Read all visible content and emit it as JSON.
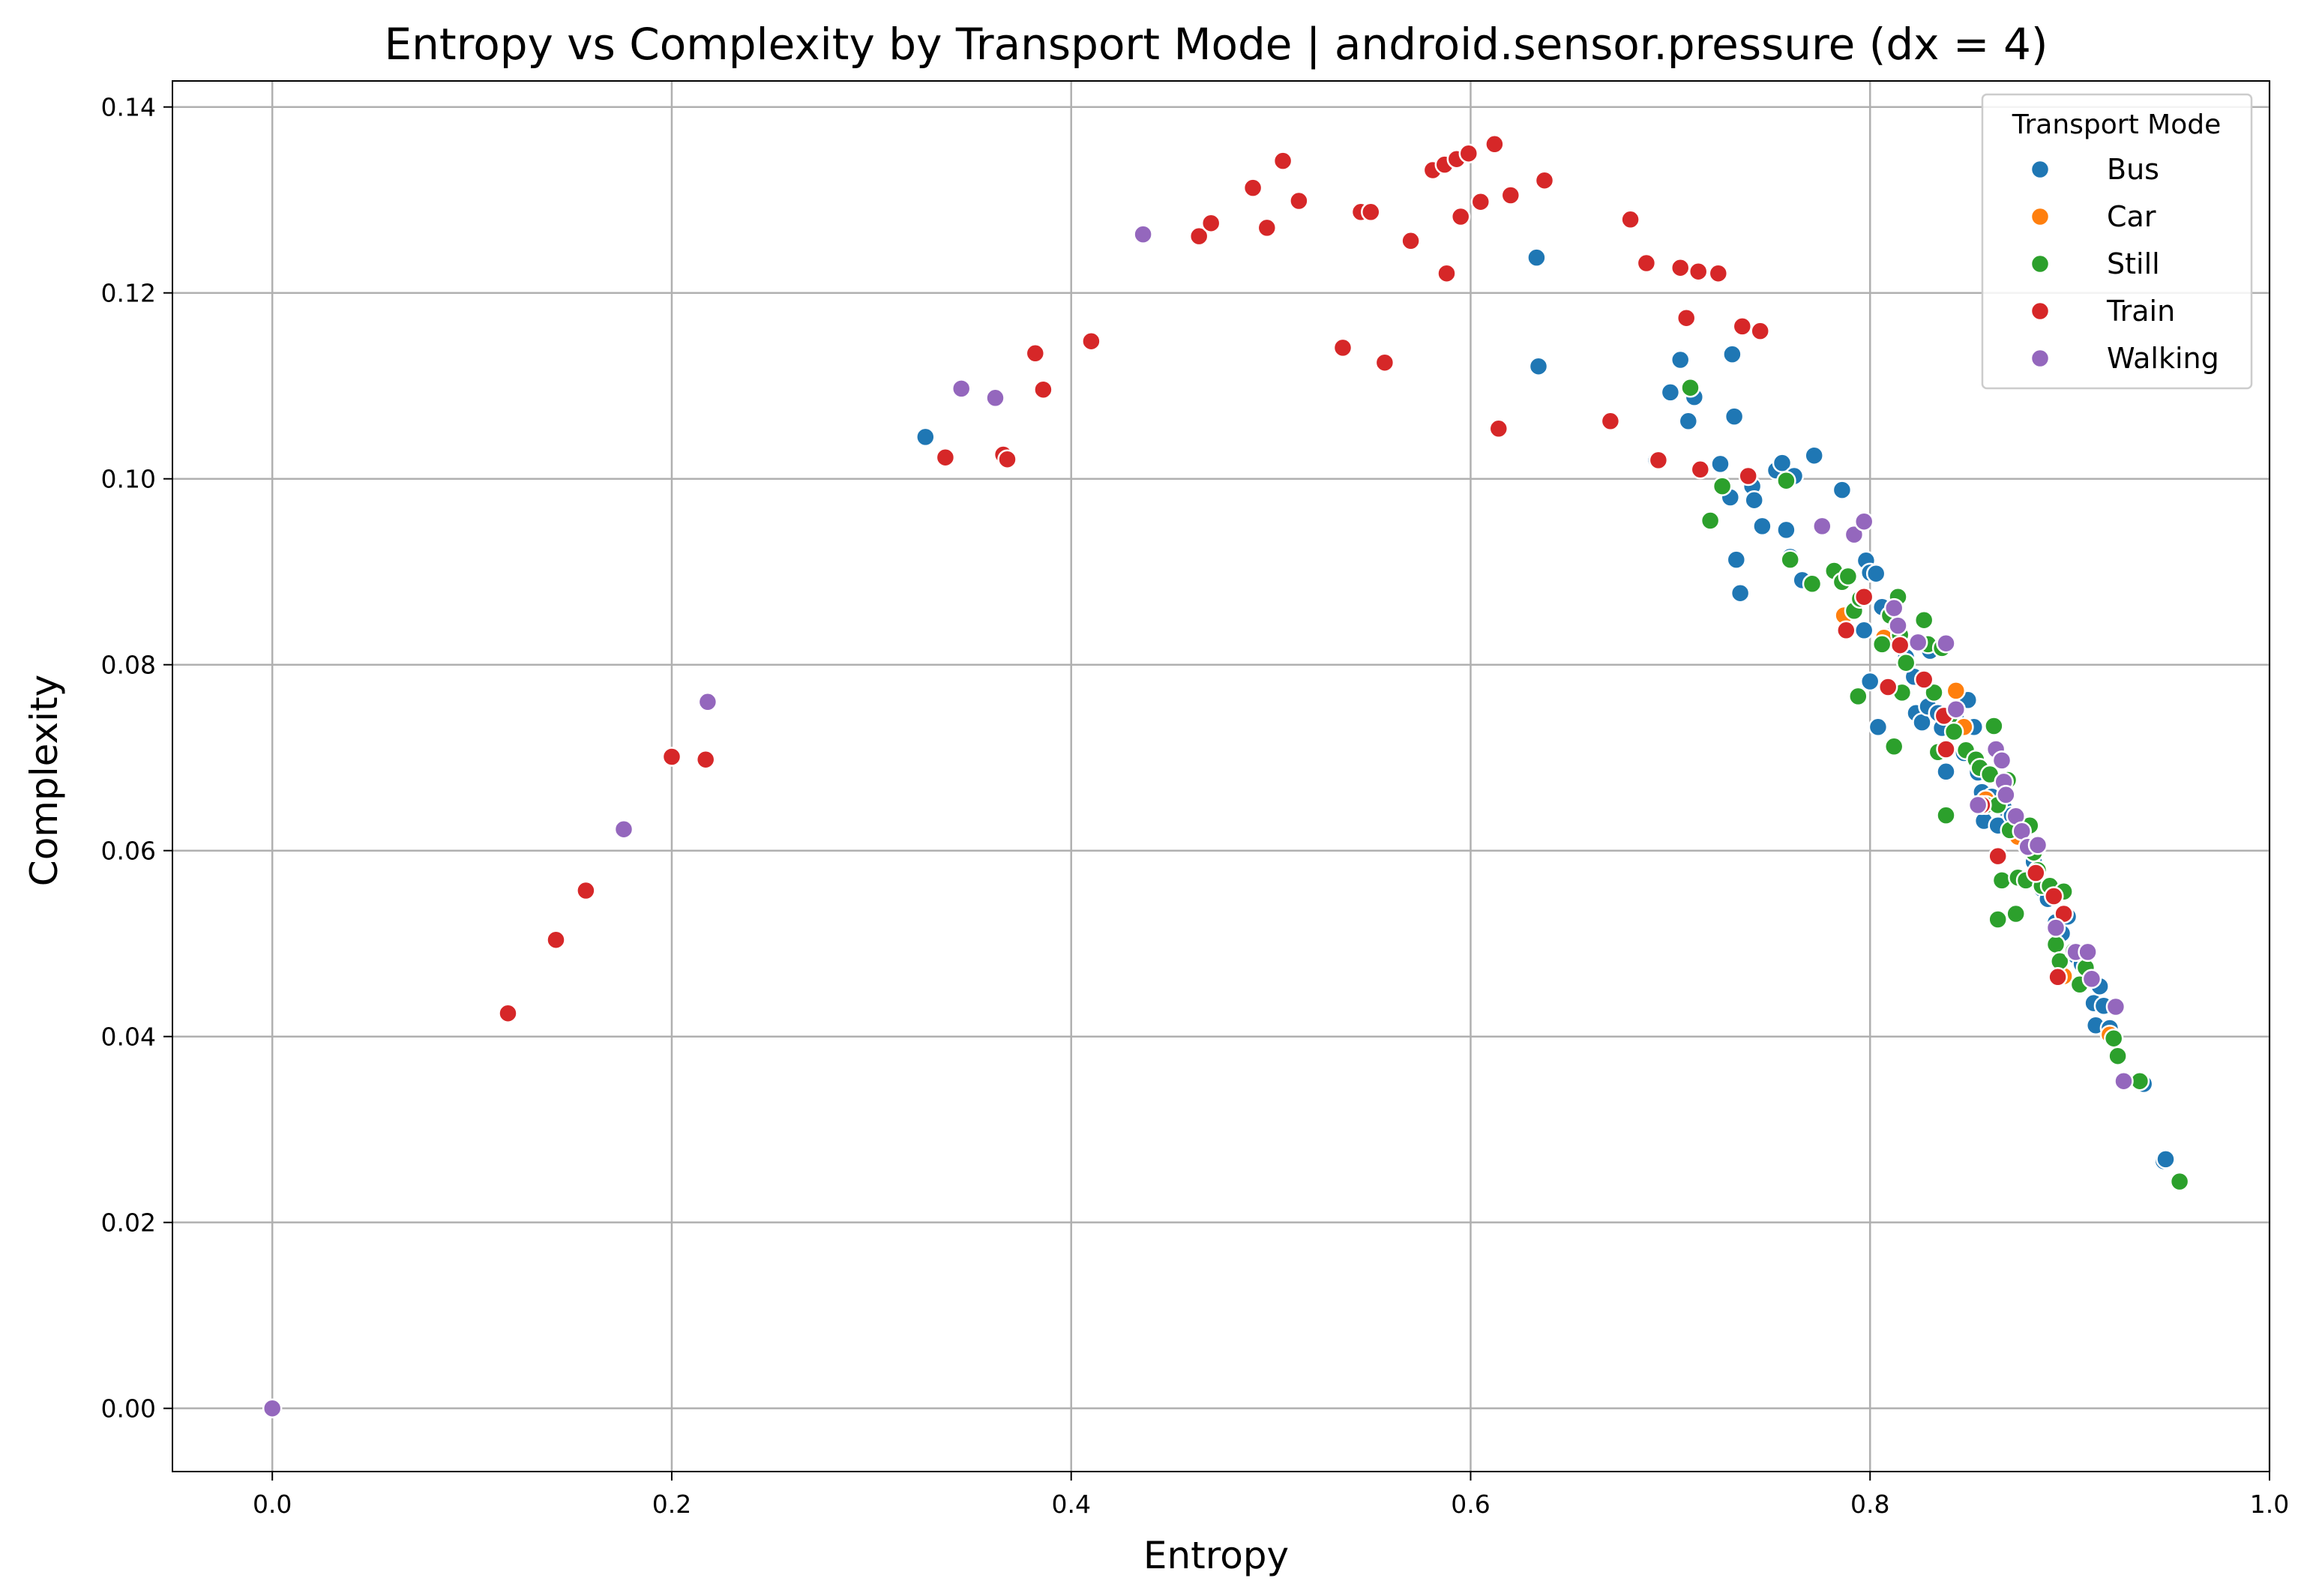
{
  "chart_data": {
    "type": "scatter",
    "title": "Entropy vs Complexity by Transport Mode | android.sensor.pressure (dx = 4)",
    "xlabel": "Entropy",
    "ylabel": "Complexity",
    "xlim": [
      -0.05,
      1.0
    ],
    "ylim": [
      -0.0068,
      0.1428
    ],
    "xticks": [
      0.0,
      0.2,
      0.4,
      0.6,
      0.8,
      1.0
    ],
    "xtick_labels": [
      "0.0",
      "0.2",
      "0.4",
      "0.6",
      "0.8",
      "1.0"
    ],
    "yticks": [
      0.0,
      0.02,
      0.04,
      0.06,
      0.08,
      0.1,
      0.12,
      0.14
    ],
    "ytick_labels": [
      "0.00",
      "0.02",
      "0.04",
      "0.06",
      "0.08",
      "0.10",
      "0.12",
      "0.14"
    ],
    "grid": true,
    "legend": {
      "title": "Transport Mode",
      "placement": "top-right"
    },
    "series": [
      {
        "name": "Bus",
        "color": "#1f77b4",
        "points": [
          [
            0.327,
            0.1045
          ],
          [
            0.633,
            0.1238
          ],
          [
            0.634,
            0.1121
          ],
          [
            0.693,
            0.102
          ],
          [
            0.7,
            0.1093
          ],
          [
            0.705,
            0.1128
          ],
          [
            0.709,
            0.1062
          ],
          [
            0.712,
            0.1088
          ],
          [
            0.725,
            0.1016
          ],
          [
            0.731,
            0.1134
          ],
          [
            0.732,
            0.1067
          ],
          [
            0.73,
            0.098
          ],
          [
            0.733,
            0.0913
          ],
          [
            0.735,
            0.0877
          ],
          [
            0.741,
            0.0992
          ],
          [
            0.742,
            0.0977
          ],
          [
            0.746,
            0.0949
          ],
          [
            0.753,
            0.1009
          ],
          [
            0.756,
            0.1017
          ],
          [
            0.758,
            0.0945
          ],
          [
            0.76,
            0.0916
          ],
          [
            0.762,
            0.1003
          ],
          [
            0.766,
            0.0891
          ],
          [
            0.772,
            0.1025
          ],
          [
            0.786,
            0.0988
          ],
          [
            0.797,
            0.0837
          ],
          [
            0.798,
            0.0912
          ],
          [
            0.8,
            0.0899
          ],
          [
            0.8,
            0.0782
          ],
          [
            0.803,
            0.0898
          ],
          [
            0.804,
            0.0733
          ],
          [
            0.806,
            0.0862
          ],
          [
            0.812,
            0.0833
          ],
          [
            0.815,
            0.082
          ],
          [
            0.818,
            0.0808
          ],
          [
            0.822,
            0.0787
          ],
          [
            0.823,
            0.0748
          ],
          [
            0.826,
            0.0738
          ],
          [
            0.829,
            0.0755
          ],
          [
            0.83,
            0.0815
          ],
          [
            0.834,
            0.0748
          ],
          [
            0.836,
            0.0732
          ],
          [
            0.838,
            0.0685
          ],
          [
            0.843,
            0.0742
          ],
          [
            0.847,
            0.0705
          ],
          [
            0.849,
            0.0762
          ],
          [
            0.852,
            0.0733
          ],
          [
            0.854,
            0.0684
          ],
          [
            0.856,
            0.0663
          ],
          [
            0.857,
            0.0632
          ],
          [
            0.861,
            0.0658
          ],
          [
            0.864,
            0.0627
          ],
          [
            0.867,
            0.0646
          ],
          [
            0.871,
            0.0638
          ],
          [
            0.875,
            0.0615
          ],
          [
            0.878,
            0.0607
          ],
          [
            0.882,
            0.0588
          ],
          [
            0.886,
            0.0559
          ],
          [
            0.889,
            0.0548
          ],
          [
            0.893,
            0.0523
          ],
          [
            0.896,
            0.0511
          ],
          [
            0.899,
            0.0529
          ],
          [
            0.903,
            0.0487
          ],
          [
            0.906,
            0.0478
          ],
          [
            0.91,
            0.0462
          ],
          [
            0.912,
            0.0436
          ],
          [
            0.913,
            0.0412
          ],
          [
            0.915,
            0.0454
          ],
          [
            0.917,
            0.0433
          ],
          [
            0.92,
            0.0409
          ],
          [
            0.937,
            0.0349
          ],
          [
            0.947,
            0.0266
          ],
          [
            0.948,
            0.0268
          ]
        ]
      },
      {
        "name": "Car",
        "color": "#ff7f0e",
        "points": [
          [
            0.787,
            0.0853
          ],
          [
            0.807,
            0.0829
          ],
          [
            0.843,
            0.0772
          ],
          [
            0.847,
            0.0733
          ],
          [
            0.858,
            0.0655
          ],
          [
            0.874,
            0.0615
          ],
          [
            0.897,
            0.0465
          ],
          [
            0.92,
            0.0402
          ]
        ]
      },
      {
        "name": "Still",
        "color": "#2ca02c",
        "points": [
          [
            0.71,
            0.1098
          ],
          [
            0.72,
            0.0955
          ],
          [
            0.726,
            0.0992
          ],
          [
            0.758,
            0.0998
          ],
          [
            0.76,
            0.0913
          ],
          [
            0.771,
            0.0887
          ],
          [
            0.782,
            0.0901
          ],
          [
            0.786,
            0.0889
          ],
          [
            0.789,
            0.0895
          ],
          [
            0.792,
            0.0858
          ],
          [
            0.794,
            0.0766
          ],
          [
            0.795,
            0.0871
          ],
          [
            0.806,
            0.0822
          ],
          [
            0.81,
            0.0853
          ],
          [
            0.812,
            0.0712
          ],
          [
            0.814,
            0.0873
          ],
          [
            0.815,
            0.0832
          ],
          [
            0.816,
            0.077
          ],
          [
            0.818,
            0.0802
          ],
          [
            0.827,
            0.0848
          ],
          [
            0.829,
            0.0822
          ],
          [
            0.832,
            0.077
          ],
          [
            0.834,
            0.0706
          ],
          [
            0.836,
            0.0818
          ],
          [
            0.838,
            0.0638
          ],
          [
            0.84,
            0.0745
          ],
          [
            0.842,
            0.0728
          ],
          [
            0.848,
            0.0708
          ],
          [
            0.853,
            0.0698
          ],
          [
            0.855,
            0.0689
          ],
          [
            0.858,
            0.0649
          ],
          [
            0.86,
            0.0682
          ],
          [
            0.862,
            0.0734
          ],
          [
            0.864,
            0.0649
          ],
          [
            0.864,
            0.0526
          ],
          [
            0.866,
            0.0568
          ],
          [
            0.869,
            0.0676
          ],
          [
            0.87,
            0.0622
          ],
          [
            0.873,
            0.0532
          ],
          [
            0.874,
            0.0571
          ],
          [
            0.878,
            0.0568
          ],
          [
            0.88,
            0.0627
          ],
          [
            0.882,
            0.0598
          ],
          [
            0.884,
            0.0579
          ],
          [
            0.886,
            0.0562
          ],
          [
            0.89,
            0.0562
          ],
          [
            0.893,
            0.0499
          ],
          [
            0.895,
            0.0481
          ],
          [
            0.897,
            0.0556
          ],
          [
            0.902,
            0.0492
          ],
          [
            0.905,
            0.0456
          ],
          [
            0.908,
            0.0474
          ],
          [
            0.922,
            0.0398
          ],
          [
            0.924,
            0.0379
          ],
          [
            0.935,
            0.0352
          ],
          [
            0.955,
            0.0244
          ]
        ]
      },
      {
        "name": "Train",
        "color": "#d62728",
        "points": [
          [
            0.118,
            0.0425
          ],
          [
            0.142,
            0.0504
          ],
          [
            0.157,
            0.0557
          ],
          [
            0.2,
            0.0701
          ],
          [
            0.217,
            0.0698
          ],
          [
            0.337,
            0.1023
          ],
          [
            0.366,
            0.1026
          ],
          [
            0.368,
            0.1021
          ],
          [
            0.382,
            0.1135
          ],
          [
            0.386,
            0.1096
          ],
          [
            0.41,
            0.1148
          ],
          [
            0.464,
            0.1261
          ],
          [
            0.47,
            0.1275
          ],
          [
            0.491,
            0.1313
          ],
          [
            0.498,
            0.127
          ],
          [
            0.506,
            0.1342
          ],
          [
            0.514,
            0.1299
          ],
          [
            0.536,
            0.1141
          ],
          [
            0.545,
            0.1287
          ],
          [
            0.55,
            0.1287
          ],
          [
            0.557,
            0.1125
          ],
          [
            0.57,
            0.1256
          ],
          [
            0.581,
            0.1332
          ],
          [
            0.587,
            0.1338
          ],
          [
            0.588,
            0.1221
          ],
          [
            0.593,
            0.1344
          ],
          [
            0.595,
            0.1282
          ],
          [
            0.599,
            0.135
          ],
          [
            0.605,
            0.1298
          ],
          [
            0.612,
            0.136
          ],
          [
            0.614,
            0.1054
          ],
          [
            0.62,
            0.1305
          ],
          [
            0.637,
            0.1321
          ],
          [
            0.67,
            0.1062
          ],
          [
            0.68,
            0.1279
          ],
          [
            0.688,
            0.1232
          ],
          [
            0.694,
            0.102
          ],
          [
            0.705,
            0.1227
          ],
          [
            0.708,
            0.1173
          ],
          [
            0.714,
            0.1223
          ],
          [
            0.715,
            0.101
          ],
          [
            0.724,
            0.1221
          ],
          [
            0.736,
            0.1164
          ],
          [
            0.739,
            0.1003
          ],
          [
            0.745,
            0.1159
          ],
          [
            0.788,
            0.0837
          ],
          [
            0.797,
            0.0873
          ],
          [
            0.809,
            0.0776
          ],
          [
            0.815,
            0.0821
          ],
          [
            0.827,
            0.0784
          ],
          [
            0.837,
            0.0745
          ],
          [
            0.838,
            0.0709
          ],
          [
            0.856,
            0.0649
          ],
          [
            0.864,
            0.0594
          ],
          [
            0.883,
            0.0576
          ],
          [
            0.892,
            0.0551
          ],
          [
            0.894,
            0.0464
          ],
          [
            0.897,
            0.0532
          ]
        ]
      },
      {
        "name": "Walking",
        "color": "#9467bd",
        "points": [
          [
            0.0,
            0.0
          ],
          [
            0.176,
            0.0623
          ],
          [
            0.218,
            0.076
          ],
          [
            0.345,
            0.1097
          ],
          [
            0.362,
            0.1087
          ],
          [
            0.436,
            0.1263
          ],
          [
            0.776,
            0.0949
          ],
          [
            0.792,
            0.094
          ],
          [
            0.797,
            0.0954
          ],
          [
            0.812,
            0.0861
          ],
          [
            0.814,
            0.0842
          ],
          [
            0.824,
            0.0824
          ],
          [
            0.838,
            0.0823
          ],
          [
            0.843,
            0.0752
          ],
          [
            0.854,
            0.0649
          ],
          [
            0.863,
            0.0709
          ],
          [
            0.866,
            0.0697
          ],
          [
            0.867,
            0.0674
          ],
          [
            0.868,
            0.066
          ],
          [
            0.873,
            0.0637
          ],
          [
            0.876,
            0.0621
          ],
          [
            0.879,
            0.0604
          ],
          [
            0.884,
            0.0606
          ],
          [
            0.893,
            0.0517
          ],
          [
            0.903,
            0.0491
          ],
          [
            0.909,
            0.0491
          ],
          [
            0.911,
            0.0462
          ],
          [
            0.923,
            0.0432
          ],
          [
            0.927,
            0.0352
          ]
        ]
      }
    ]
  }
}
